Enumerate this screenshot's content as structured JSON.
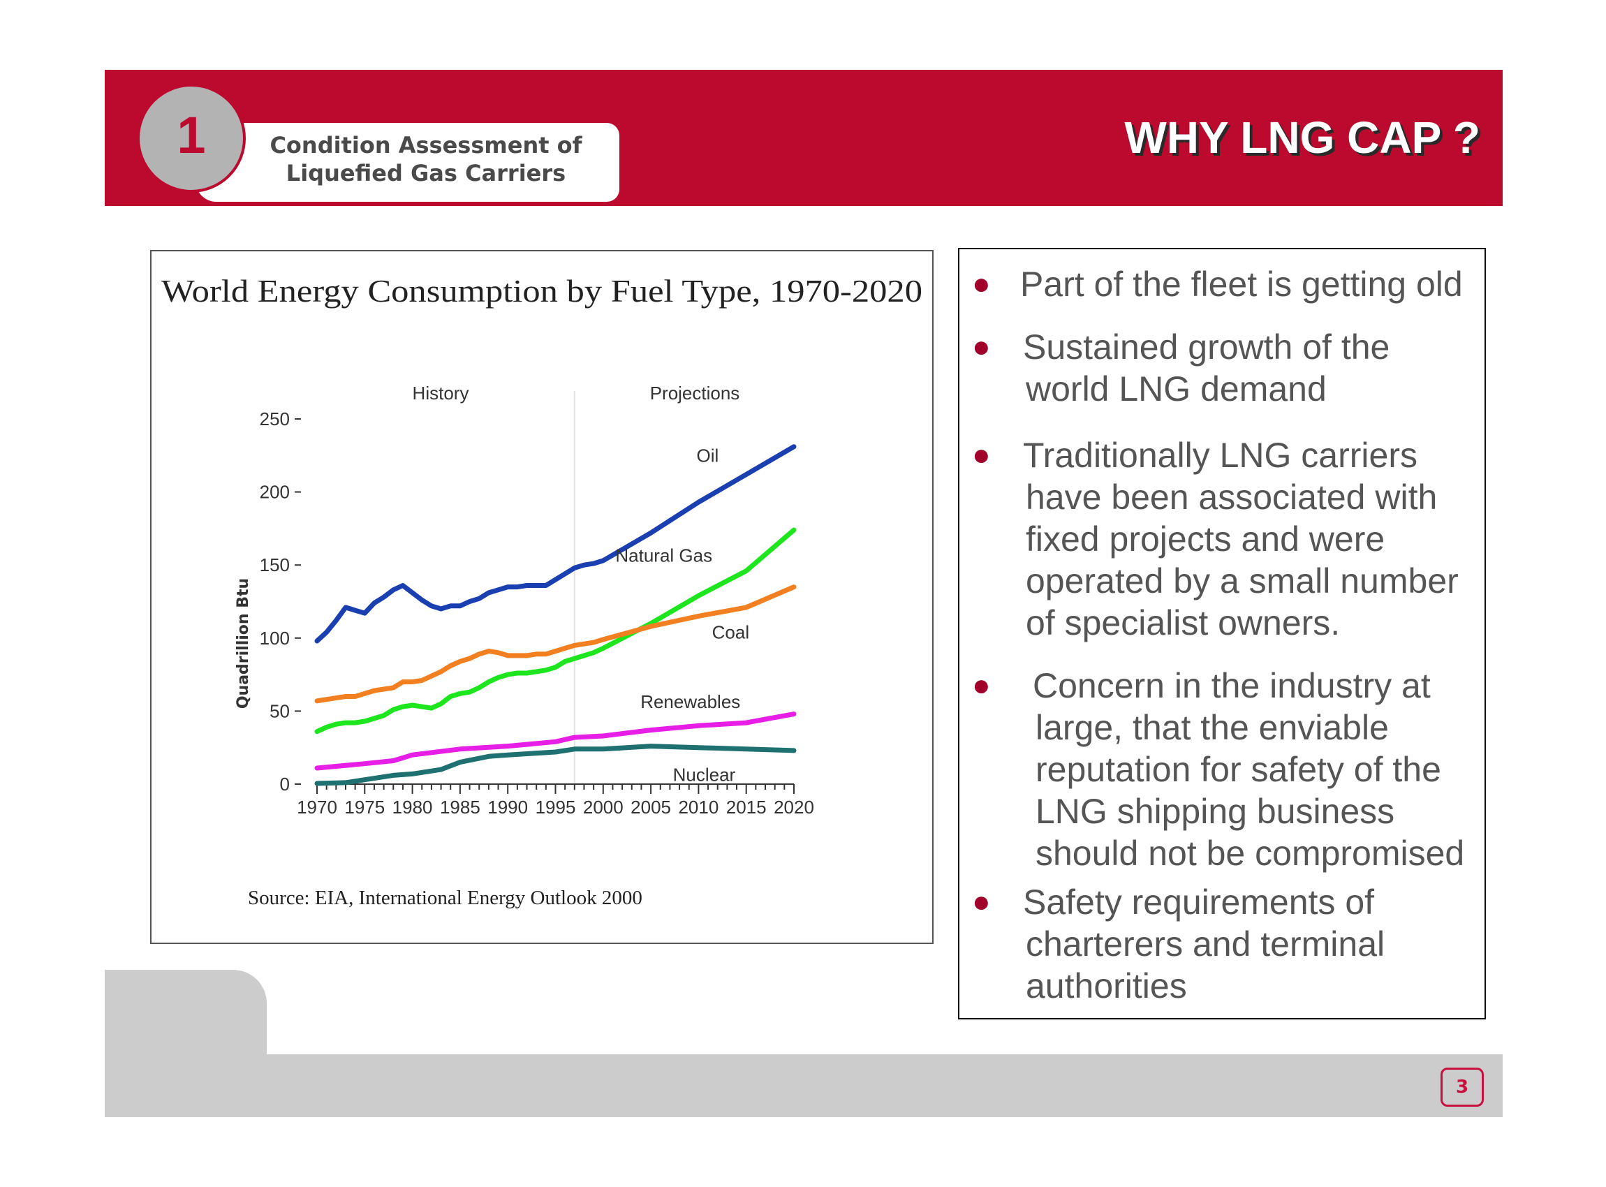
{
  "header": {
    "section_number": "1",
    "section_title_line1": "Condition Assessment of",
    "section_title_line2": "Liquefied Gas Carriers",
    "page_title": "WHY LNG CAP ?",
    "brand_color": "#bc0a2e"
  },
  "bullets": [
    {
      "lines": [
        "Part of the fleet is getting old"
      ]
    },
    {
      "lines": [
        "Sustained growth of the",
        "world LNG demand"
      ]
    },
    {
      "lines": [
        "Traditionally LNG carriers",
        "have been associated with",
        "fixed projects and were",
        "operated by a small number",
        "of specialist owners."
      ]
    },
    {
      "lines": [
        "Concern in the industry at",
        "large, that the enviable",
        "reputation for safety of the",
        "LNG shipping business",
        "should not be compromised"
      ]
    },
    {
      "lines": [
        "Safety requirements of",
        "charterers and terminal",
        "authorities"
      ]
    }
  ],
  "footer": {
    "page_number": "3"
  },
  "chart_data": {
    "type": "line",
    "title": "World Energy Consumption by Fuel Type, 1970-2020",
    "xlabel": "",
    "ylabel": "Quadrillion Btu",
    "source": "Source:  EIA, International Energy Outlook 2000",
    "region_labels": {
      "history": "History",
      "projections": "Projections"
    },
    "divider_year": 1997,
    "xlim": [
      1970,
      2020
    ],
    "ylim": [
      0,
      250
    ],
    "x_ticks": [
      1970,
      1975,
      1980,
      1985,
      1990,
      1995,
      2000,
      2005,
      2010,
      2015,
      2020
    ],
    "y_ticks": [
      0,
      50,
      100,
      150,
      200,
      250
    ],
    "grid": false,
    "legend": "inline-labels",
    "series": [
      {
        "name": "Oil",
        "color": "#1a3fb0",
        "x": [
          1970,
          1971,
          1972,
          1973,
          1974,
          1975,
          1976,
          1977,
          1978,
          1979,
          1980,
          1981,
          1982,
          1983,
          1984,
          1985,
          1986,
          1987,
          1988,
          1989,
          1990,
          1991,
          1992,
          1993,
          1994,
          1995,
          1996,
          1997,
          1998,
          1999,
          2000,
          2005,
          2010,
          2015,
          2020
        ],
        "values": [
          98,
          104,
          112,
          121,
          119,
          117,
          124,
          128,
          133,
          136,
          131,
          126,
          122,
          120,
          122,
          122,
          125,
          127,
          131,
          133,
          135,
          135,
          136,
          136,
          136,
          140,
          144,
          148,
          150,
          151,
          153,
          172,
          193,
          212,
          231
        ]
      },
      {
        "name": "Natural Gas",
        "color": "#1ee61e",
        "x": [
          1970,
          1971,
          1972,
          1973,
          1974,
          1975,
          1976,
          1977,
          1978,
          1979,
          1980,
          1981,
          1982,
          1983,
          1984,
          1985,
          1986,
          1987,
          1988,
          1989,
          1990,
          1991,
          1992,
          1993,
          1994,
          1995,
          1996,
          1997,
          1998,
          1999,
          2000,
          2005,
          2010,
          2015,
          2020
        ],
        "values": [
          36,
          39,
          41,
          42,
          42,
          43,
          45,
          47,
          51,
          53,
          54,
          53,
          52,
          55,
          60,
          62,
          63,
          66,
          70,
          73,
          75,
          76,
          76,
          77,
          78,
          80,
          84,
          86,
          88,
          90,
          93,
          110,
          129,
          146,
          174
        ]
      },
      {
        "name": "Coal",
        "color": "#f28020",
        "x": [
          1970,
          1971,
          1972,
          1973,
          1974,
          1975,
          1976,
          1977,
          1978,
          1979,
          1980,
          1981,
          1982,
          1983,
          1984,
          1985,
          1986,
          1987,
          1988,
          1989,
          1990,
          1991,
          1992,
          1993,
          1994,
          1995,
          1996,
          1997,
          1998,
          1999,
          2000,
          2005,
          2010,
          2015,
          2020
        ],
        "values": [
          57,
          58,
          59,
          60,
          60,
          62,
          64,
          65,
          66,
          70,
          70,
          71,
          74,
          77,
          81,
          84,
          86,
          89,
          91,
          90,
          88,
          88,
          88,
          89,
          89,
          91,
          93,
          95,
          96,
          97,
          99,
          108,
          115,
          121,
          135
        ]
      },
      {
        "name": "Renewables",
        "color": "#e61ee6",
        "x": [
          1970,
          1975,
          1978,
          1980,
          1985,
          1990,
          1995,
          1997,
          2000,
          2005,
          2010,
          2015,
          2020
        ],
        "values": [
          11,
          14,
          16,
          20,
          24,
          26,
          29,
          32,
          33,
          37,
          40,
          42,
          48
        ]
      },
      {
        "name": "Nuclear",
        "color": "#1f7070",
        "x": [
          1970,
          1973,
          1975,
          1978,
          1980,
          1983,
          1985,
          1988,
          1990,
          1995,
          1997,
          2000,
          2005,
          2010,
          2015,
          2020
        ],
        "values": [
          0.5,
          1,
          3,
          6,
          7,
          10,
          15,
          19,
          20,
          22,
          24,
          24,
          26,
          25,
          24,
          23
        ]
      }
    ]
  }
}
